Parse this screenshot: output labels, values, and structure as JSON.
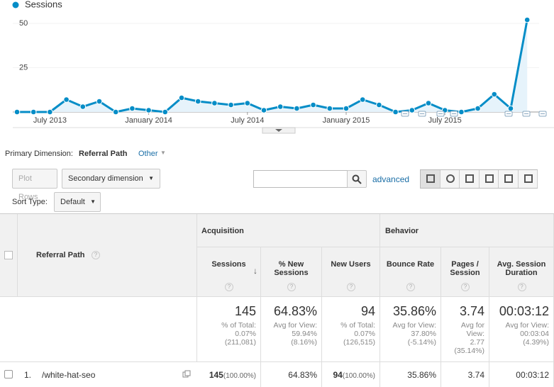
{
  "chart_data": {
    "type": "line",
    "series": [
      {
        "name": "Sessions",
        "color": "#058dc7",
        "values": [
          0,
          0,
          0,
          7,
          3,
          6,
          0,
          2,
          1,
          0,
          8,
          6,
          5,
          4,
          5,
          1,
          3,
          2,
          4,
          2,
          2,
          7,
          4,
          0,
          1,
          5,
          1,
          0,
          2,
          10,
          2,
          52
        ]
      }
    ],
    "categories": [
      null,
      null,
      "July 2013",
      null,
      null,
      null,
      null,
      null,
      "January 2014",
      null,
      null,
      null,
      null,
      null,
      "July 2014",
      null,
      null,
      null,
      null,
      null,
      "January 2015",
      null,
      null,
      null,
      null,
      null,
      "July 2015",
      null,
      null,
      null,
      null,
      null
    ],
    "ylim": [
      0,
      55
    ],
    "yticks": [
      25,
      50
    ],
    "area": true,
    "area_color": "#e6f3fb",
    "grid": true
  },
  "dimension_bar": {
    "label": "Primary Dimension:",
    "active": "Referral Path",
    "other": "Other"
  },
  "toolbar": {
    "plot_rows": "Plot Rows",
    "secondary": "Secondary dimension",
    "advanced": "advanced",
    "sort_label": "Sort Type:",
    "sort_value": "Default"
  },
  "table": {
    "groups": [
      "Acquisition",
      "Behavior"
    ],
    "dimension": "Referral Path",
    "columns": [
      "Sessions",
      "% New Sessions",
      "New Users",
      "Bounce Rate",
      "Pages / Session",
      "Avg. Session Duration"
    ],
    "totals": [
      {
        "value": "145",
        "label": "% of Total:",
        "view": "0.07%",
        "compare": "(211,081)"
      },
      {
        "value": "64.83%",
        "label": "Avg for View:",
        "view": "59.94%",
        "compare": "(8.16%)"
      },
      {
        "value": "94",
        "label": "% of Total:",
        "view": "0.07%",
        "compare": "(126,515)"
      },
      {
        "value": "35.86%",
        "label": "Avg for View:",
        "view": "37.80%",
        "compare": "(-5.14%)"
      },
      {
        "value": "3.74",
        "label": "Avg for View:",
        "view": "2.77",
        "compare": "(35.14%)"
      },
      {
        "value": "00:03:12",
        "label": "Avg for View:",
        "view": "00:03:04",
        "compare": "(4.39%)"
      }
    ],
    "rows": [
      {
        "index": "1.",
        "path": "/white-hat-seo",
        "cells": [
          {
            "value": "145",
            "share": "(100.00%)"
          },
          {
            "value": "64.83%"
          },
          {
            "value": "94",
            "share": "(100.00%)"
          },
          {
            "value": "35.86%"
          },
          {
            "value": "3.74"
          },
          {
            "value": "00:03:12"
          }
        ]
      }
    ]
  }
}
